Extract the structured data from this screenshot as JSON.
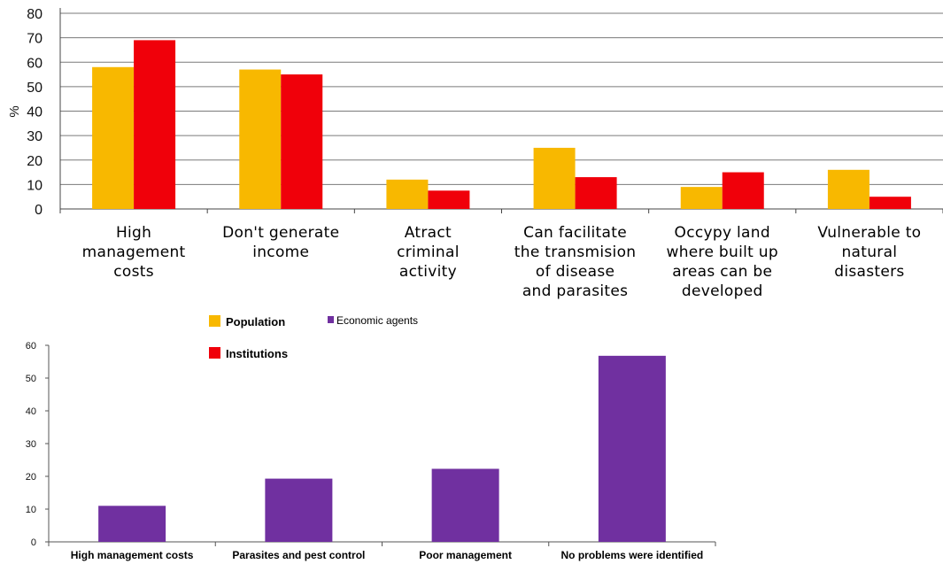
{
  "colors": {
    "population": "#F8B800",
    "institutions": "#F0000A",
    "economic_agents": "#7030A0",
    "grid": "#7a7a7a"
  },
  "legend": {
    "population": "Population",
    "institutions": "Institutions",
    "economic_agents": "Economic agents"
  },
  "chart_data": [
    {
      "type": "bar",
      "ylabel": "%",
      "ylim": [
        0,
        80
      ],
      "yticks": [
        0,
        10,
        20,
        30,
        40,
        50,
        60,
        70,
        80
      ],
      "grid": true,
      "categories": [
        [
          "High",
          "management",
          "costs"
        ],
        [
          "Don't generate",
          "income"
        ],
        [
          "Atract",
          "criminal",
          "activity"
        ],
        [
          "Can facilitate",
          "the transmision",
          "of disease",
          "and parasites"
        ],
        [
          "Occypy land",
          "where built up",
          "areas can be",
          "developed"
        ],
        [
          "Vulnerable to",
          "natural",
          "disasters"
        ]
      ],
      "series": [
        {
          "name": "Population",
          "values": [
            58,
            57,
            12,
            25,
            9,
            16
          ]
        },
        {
          "name": "Institutions",
          "values": [
            69,
            55,
            7.5,
            13,
            15,
            5
          ]
        }
      ]
    },
    {
      "type": "bar",
      "ylim": [
        0,
        60
      ],
      "yticks": [
        0,
        10,
        20,
        30,
        40,
        50,
        60
      ],
      "grid": false,
      "categories": [
        "High management costs",
        "Parasites and pest control",
        "Poor management",
        "No problems were identified"
      ],
      "series": [
        {
          "name": "Economic agents",
          "values": [
            11,
            19.3,
            22.3,
            56.8
          ]
        }
      ]
    }
  ]
}
